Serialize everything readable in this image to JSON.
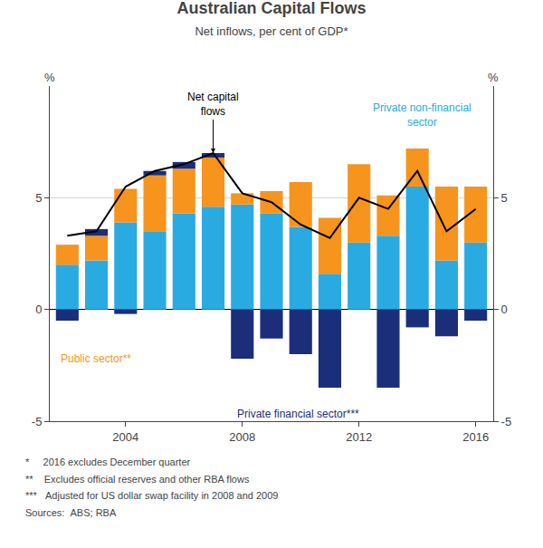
{
  "chart_data": {
    "type": "bar",
    "stacked": true,
    "title": "Australian Capital Flows",
    "subtitle": "Net inflows, per cent of GDP*",
    "x": [
      2002,
      2003,
      2004,
      2005,
      2006,
      2007,
      2008,
      2009,
      2010,
      2011,
      2012,
      2013,
      2014,
      2015,
      2016
    ],
    "xlim": [
      2001.4,
      2016.6
    ],
    "xticks": [
      2004,
      2008,
      2012,
      2016
    ],
    "ylim": [
      -5,
      10
    ],
    "yticks": [
      -5,
      0,
      5
    ],
    "y2lim": [
      -5,
      10
    ],
    "y2ticks": [
      -5,
      0,
      5
    ],
    "ylabel": "%",
    "grid": true,
    "series": [
      {
        "name": "Private non-financial\nsector",
        "color": "#29ABE2",
        "values": [
          2.0,
          2.2,
          3.9,
          3.5,
          4.3,
          4.6,
          4.7,
          4.3,
          3.7,
          1.6,
          3.0,
          3.3,
          5.5,
          2.2,
          3.0
        ]
      },
      {
        "name": "Public sector**",
        "color": "#F7941D",
        "values": [
          0.9,
          1.1,
          1.5,
          2.5,
          2.0,
          2.2,
          0.5,
          1.0,
          2.0,
          2.5,
          3.5,
          1.8,
          1.7,
          3.3,
          2.5
        ]
      },
      {
        "name": "Private financial sector***",
        "color": "#1B2E7A",
        "values": [
          -0.5,
          0.3,
          -0.2,
          0.2,
          0.3,
          0.2,
          -2.2,
          -1.3,
          -2.0,
          -3.5,
          0.0,
          -3.5,
          -0.8,
          -1.2,
          -0.5
        ]
      },
      {
        "name": "Net capital\nflows",
        "type": "line",
        "color": "#000000",
        "axis": "y2",
        "values": [
          3.3,
          3.5,
          5.5,
          6.2,
          6.5,
          7.0,
          5.2,
          4.8,
          3.8,
          3.2,
          5.0,
          4.5,
          6.2,
          3.5,
          4.5
        ]
      }
    ],
    "footnotes": [
      "*     2016 excludes December quarter",
      "**    Excludes official reserves and other RBA flows",
      "***   Adjusted for US dollar swap facility in 2008 and 2009",
      "Sources:  ABS; RBA"
    ]
  }
}
